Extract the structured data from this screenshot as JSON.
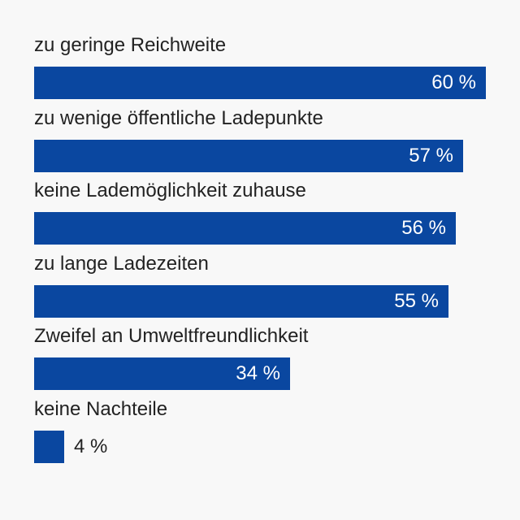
{
  "chart_data": {
    "type": "bar",
    "orientation": "horizontal",
    "categories": [
      "zu geringe Reichweite",
      "zu wenige öffentliche Ladepunkte",
      "keine Lademöglichkeit zuhause",
      "zu lange Ladezeiten",
      "Zweifel an Umweltfreundlichkeit",
      "keine Nachteile"
    ],
    "values": [
      60,
      57,
      56,
      55,
      34,
      4
    ],
    "value_labels": [
      "60 %",
      "57 %",
      "56 %",
      "55 %",
      "34 %",
      "4 %"
    ],
    "unit": "%",
    "xlim": [
      0,
      60
    ],
    "grid": false,
    "legend": "none",
    "bar_color": "#0a47a0"
  }
}
